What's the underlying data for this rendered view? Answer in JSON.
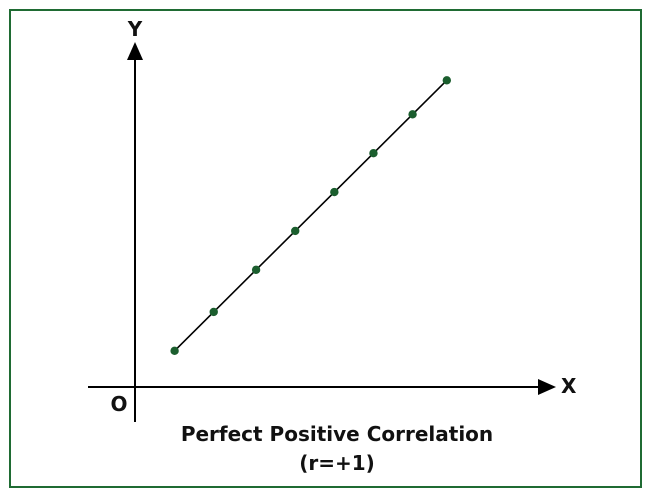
{
  "chart_data": {
    "type": "scatter",
    "title": "Perfect Positive Correlation",
    "subtitle": "(r=+1)",
    "xlabel": "X",
    "ylabel": "Y",
    "origin_label": "O",
    "colors": {
      "point": "#1b5e2e",
      "line": "#000000",
      "border": "#1f6b33"
    },
    "trend_line": true,
    "grid": false,
    "legend": "none",
    "xlim": [
      0,
      10
    ],
    "ylim": [
      0,
      10
    ],
    "points": [
      {
        "x": 1.0,
        "y": 0.9
      },
      {
        "x": 2.2,
        "y": 2.1
      },
      {
        "x": 3.5,
        "y": 3.4
      },
      {
        "x": 4.7,
        "y": 4.6
      },
      {
        "x": 5.9,
        "y": 5.8
      },
      {
        "x": 7.1,
        "y": 7.0
      },
      {
        "x": 8.3,
        "y": 8.2
      },
      {
        "x": 9.35,
        "y": 9.25
      }
    ]
  }
}
